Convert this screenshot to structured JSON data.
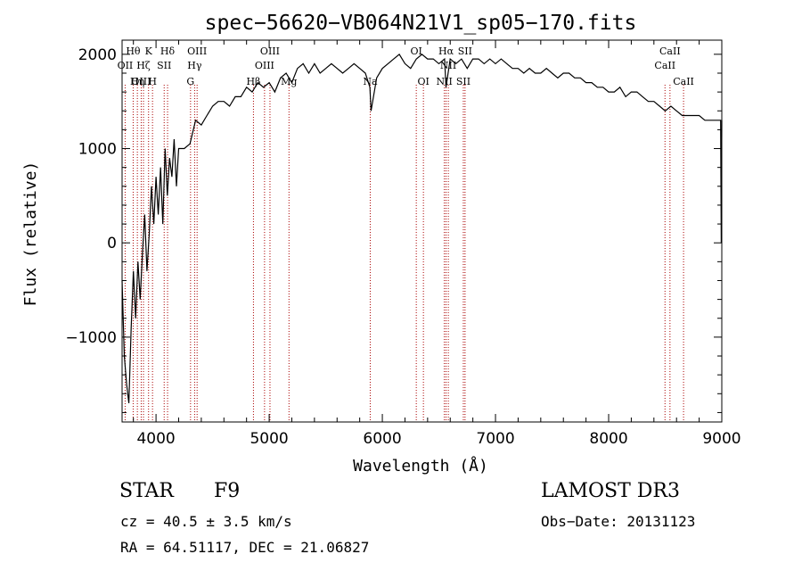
{
  "chart_data": {
    "type": "line",
    "title": "spec−56620−VB064N21V1_sp05−170.fits",
    "xlabel": "Wavelength (Å)",
    "ylabel": "Flux (relative)",
    "xlim": [
      3700,
      9000
    ],
    "ylim": [
      -1900,
      2150
    ],
    "xticks": [
      4000,
      5000,
      6000,
      7000,
      8000,
      9000
    ],
    "xtick_labels": [
      "4000",
      "5000",
      "6000",
      "7000",
      "8000",
      "9000"
    ],
    "yticks": [
      -1000,
      0,
      1000,
      2000
    ],
    "ytick_labels": [
      "−1000",
      "0",
      "1000",
      "2000"
    ],
    "grid": false,
    "series": [
      {
        "name": "spectrum",
        "x": [
          3700,
          3720,
          3740,
          3760,
          3780,
          3800,
          3820,
          3840,
          3860,
          3880,
          3900,
          3920,
          3940,
          3960,
          3980,
          4000,
          4020,
          4040,
          4060,
          4080,
          4100,
          4120,
          4140,
          4160,
          4180,
          4200,
          4250,
          4300,
          4350,
          4400,
          4450,
          4500,
          4550,
          4600,
          4650,
          4700,
          4750,
          4800,
          4850,
          4900,
          4950,
          5000,
          5050,
          5100,
          5150,
          5200,
          5250,
          5300,
          5350,
          5400,
          5450,
          5500,
          5550,
          5600,
          5650,
          5700,
          5750,
          5800,
          5850,
          5890,
          5900,
          5950,
          6000,
          6050,
          6100,
          6150,
          6200,
          6250,
          6300,
          6350,
          6400,
          6450,
          6500,
          6550,
          6563,
          6600,
          6650,
          6700,
          6750,
          6800,
          6850,
          6900,
          6950,
          7000,
          7050,
          7100,
          7150,
          7200,
          7250,
          7300,
          7350,
          7400,
          7450,
          7500,
          7550,
          7600,
          7650,
          7700,
          7750,
          7800,
          7850,
          7900,
          7950,
          8000,
          8050,
          8100,
          8150,
          8200,
          8250,
          8300,
          8350,
          8400,
          8450,
          8500,
          8550,
          8600,
          8650,
          8700,
          8750,
          8800,
          8850,
          8900,
          8950,
          8990,
          8995,
          9000
        ],
        "y": [
          -400,
          -1200,
          -1500,
          -1700,
          -900,
          -300,
          -800,
          -200,
          -600,
          -100,
          300,
          -300,
          100,
          600,
          200,
          700,
          300,
          800,
          200,
          1000,
          500,
          900,
          700,
          1100,
          600,
          1000,
          1000,
          1050,
          1300,
          1250,
          1350,
          1450,
          1500,
          1500,
          1450,
          1550,
          1550,
          1650,
          1600,
          1700,
          1650,
          1700,
          1600,
          1750,
          1800,
          1700,
          1850,
          1900,
          1800,
          1900,
          1800,
          1850,
          1900,
          1850,
          1800,
          1850,
          1900,
          1850,
          1800,
          1650,
          1400,
          1750,
          1850,
          1900,
          1950,
          2000,
          1900,
          1850,
          1950,
          2000,
          1950,
          1950,
          1900,
          1950,
          1650,
          1950,
          1900,
          1950,
          1850,
          1950,
          1950,
          1900,
          1950,
          1900,
          1950,
          1900,
          1850,
          1850,
          1800,
          1850,
          1800,
          1800,
          1850,
          1800,
          1750,
          1800,
          1800,
          1750,
          1750,
          1700,
          1700,
          1650,
          1650,
          1600,
          1600,
          1650,
          1550,
          1600,
          1600,
          1550,
          1500,
          1500,
          1450,
          1400,
          1450,
          1400,
          1350,
          1350,
          1350,
          1350,
          1300,
          1300,
          1300,
          1300,
          0,
          1300
        ]
      }
    ],
    "lines": [
      {
        "name": "OII",
        "x": 3727
      },
      {
        "name": "Hθ",
        "x": 3798
      },
      {
        "name": "Hη",
        "x": 3835
      },
      {
        "name": "OIII",
        "x": 3869
      },
      {
        "name": "Hζ",
        "x": 3889
      },
      {
        "name": "K",
        "x": 3934
      },
      {
        "name": "H",
        "x": 3969
      },
      {
        "name": "SII",
        "x": 4072
      },
      {
        "name": "Hδ",
        "x": 4102
      },
      {
        "name": "G",
        "x": 4305
      },
      {
        "name": "Hγ",
        "x": 4341
      },
      {
        "name": "OIII",
        "x": 4363
      },
      {
        "name": "Hβ",
        "x": 4861
      },
      {
        "name": "OIII",
        "x": 4959
      },
      {
        "name": "OIII",
        "x": 5007
      },
      {
        "name": "Mg",
        "x": 5175
      },
      {
        "name": "Na",
        "x": 5893
      },
      {
        "name": "OI",
        "x": 6300
      },
      {
        "name": "OI",
        "x": 6363
      },
      {
        "name": "NII",
        "x": 6548
      },
      {
        "name": "Hα",
        "x": 6563
      },
      {
        "name": "NII",
        "x": 6583
      },
      {
        "name": "SII",
        "x": 6716
      },
      {
        "name": "SII",
        "x": 6731
      },
      {
        "name": "CaII",
        "x": 8498
      },
      {
        "name": "CaII",
        "x": 8542
      },
      {
        "name": "CaII",
        "x": 8662
      }
    ],
    "line_labels": [
      {
        "text": "Hθ",
        "x": 3798,
        "row": 1
      },
      {
        "text": "K",
        "x": 3934,
        "row": 1
      },
      {
        "text": "Hδ",
        "x": 4102,
        "row": 1
      },
      {
        "text": "OIII",
        "x": 4363,
        "row": 1
      },
      {
        "text": "OIII",
        "x": 5007,
        "row": 1
      },
      {
        "text": "OI",
        "x": 6300,
        "row": 1
      },
      {
        "text": "Hα",
        "x": 6563,
        "row": 1
      },
      {
        "text": "SII",
        "x": 6731,
        "row": 1
      },
      {
        "text": "CaII",
        "x": 8542,
        "row": 1
      },
      {
        "text": "OII",
        "x": 3727,
        "row": 2
      },
      {
        "text": "Hζ",
        "x": 3889,
        "row": 2
      },
      {
        "text": "SII",
        "x": 4072,
        "row": 2
      },
      {
        "text": "Hγ",
        "x": 4341,
        "row": 2
      },
      {
        "text": "OIII",
        "x": 4959,
        "row": 2
      },
      {
        "text": "NII",
        "x": 6583,
        "row": 2
      },
      {
        "text": "CaII",
        "x": 8498,
        "row": 2
      },
      {
        "text": "OIII",
        "x": 3869,
        "row": 3
      },
      {
        "text": "Hη",
        "x": 3835,
        "row": 3
      },
      {
        "text": "H",
        "x": 3969,
        "row": 3
      },
      {
        "text": "G",
        "x": 4305,
        "row": 3
      },
      {
        "text": "Hβ",
        "x": 4861,
        "row": 3
      },
      {
        "text": "Mg",
        "x": 5175,
        "row": 3
      },
      {
        "text": "Na",
        "x": 5893,
        "row": 3
      },
      {
        "text": "OI",
        "x": 6363,
        "row": 3
      },
      {
        "text": "NII",
        "x": 6548,
        "row": 3
      },
      {
        "text": "SII",
        "x": 6716,
        "row": 3
      },
      {
        "text": "CaII",
        "x": 8662,
        "row": 3
      }
    ]
  },
  "info": {
    "object_class": "STAR",
    "subclass": "F9",
    "survey": "LAMOST DR3",
    "cz": "cz = 40.5 ± 3.5 km/s",
    "obs_date": "Obs−Date: 20131123",
    "coords": "RA =  64.51117, DEC =  21.06827"
  },
  "colors": {
    "spectrum": "#000000",
    "line_marker": "#aa0000",
    "axes": "#000000",
    "background": "#ffffff"
  }
}
